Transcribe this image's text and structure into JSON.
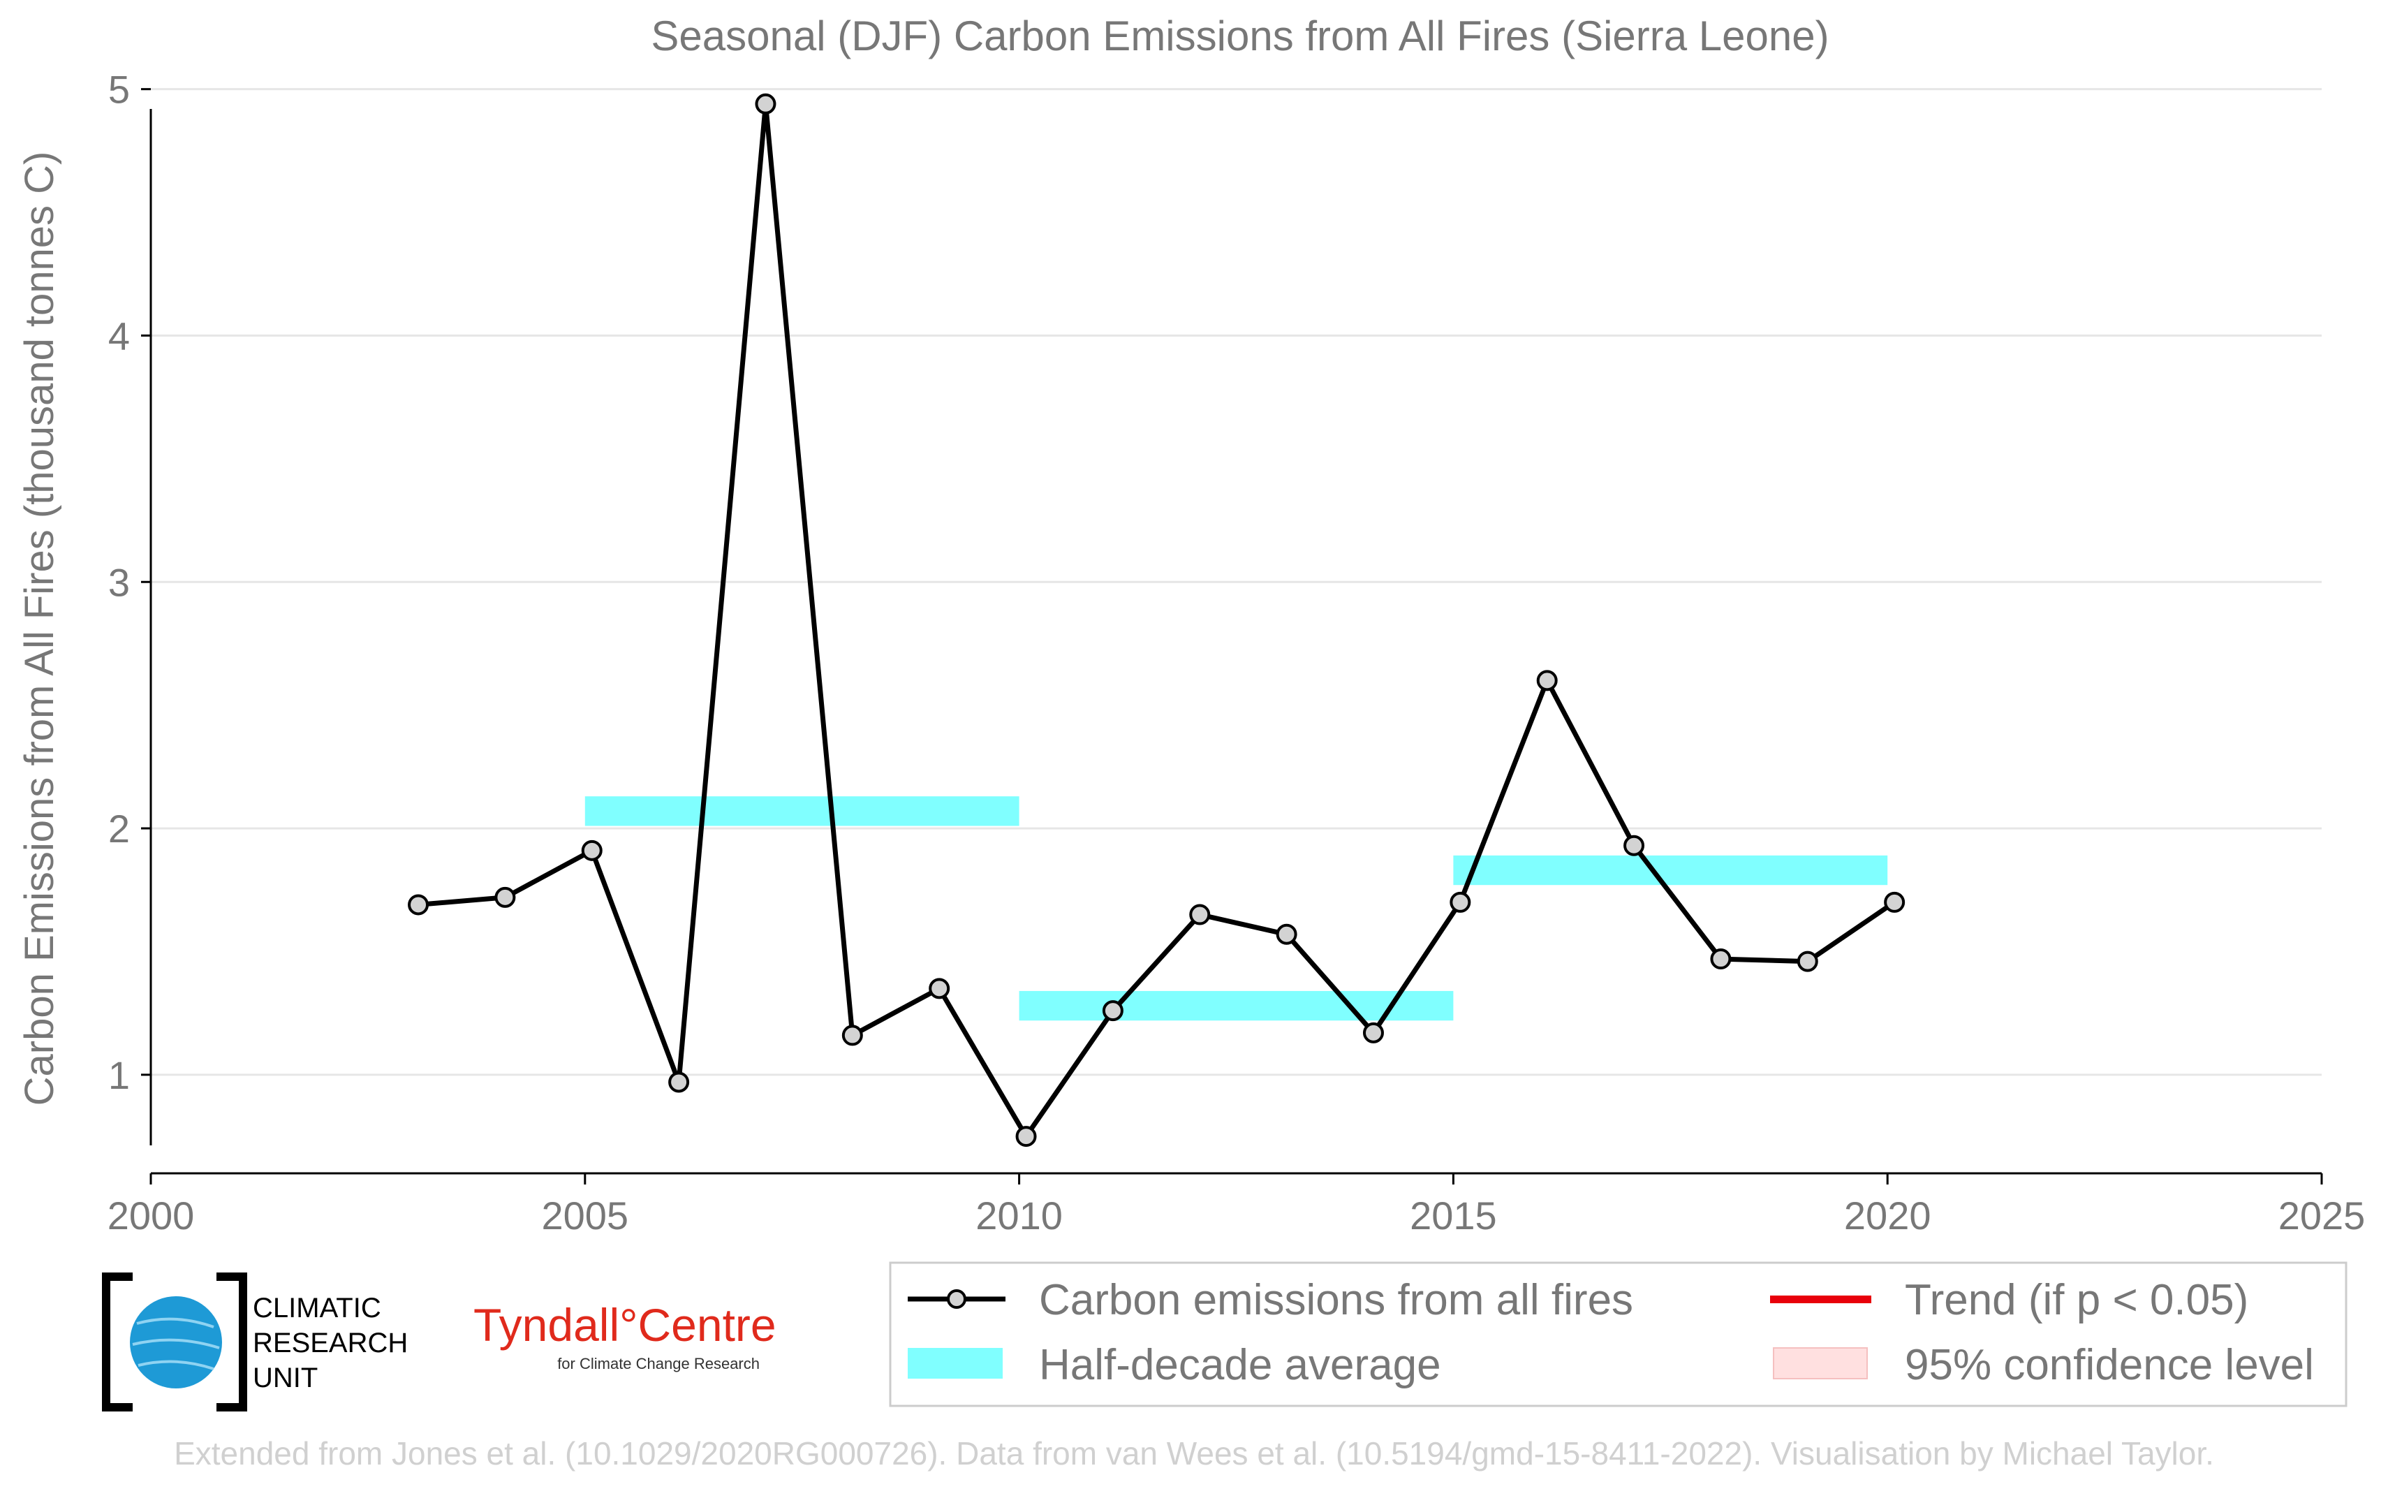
{
  "chart_data": {
    "type": "line",
    "title": "Seasonal (DJF) Carbon Emissions from All Fires (Sierra Leone)",
    "xlabel": "",
    "ylabel": "Carbon Emissions from All Fires (thousand tonnes C)",
    "xlim": [
      2000,
      2025
    ],
    "ylim": [
      0.6,
      5.05
    ],
    "xticks": [
      2000,
      2005,
      2010,
      2015,
      2020,
      2025
    ],
    "yticks": [
      1,
      2,
      3,
      4,
      5
    ],
    "grid": "horizontal",
    "legend_position": "bottom",
    "series": [
      {
        "name": "Carbon emissions from all fires",
        "color": "#000000",
        "marker_fill": "#d3d3d3",
        "x": [
          2003.08,
          2004.08,
          2005.08,
          2006.08,
          2007.08,
          2008.08,
          2009.08,
          2010.08,
          2011.08,
          2012.08,
          2013.08,
          2014.08,
          2015.08,
          2016.08,
          2017.08,
          2018.08,
          2019.08,
          2020.08
        ],
        "y": [
          1.69,
          1.72,
          1.91,
          0.97,
          4.94,
          1.16,
          1.35,
          0.75,
          1.26,
          1.65,
          1.57,
          1.17,
          1.7,
          2.6,
          1.93,
          1.47,
          1.46,
          1.7
        ]
      }
    ],
    "half_decade_averages": {
      "name": "Half-decade average",
      "color": "#80ffff",
      "periods": [
        {
          "start": 2005,
          "end": 2010,
          "value": 2.07
        },
        {
          "start": 2010,
          "end": 2015,
          "value": 1.28
        },
        {
          "start": 2015,
          "end": 2020,
          "value": 1.83
        }
      ]
    },
    "legend": [
      {
        "label": "Carbon emissions from all fires",
        "kind": "line-marker",
        "color": "#000000"
      },
      {
        "label": "Trend (if p < 0.05)",
        "kind": "line",
        "color": "#e8000b"
      },
      {
        "label": "Half-decade average",
        "kind": "band",
        "color": "#80ffff"
      },
      {
        "label": "95% confidence level",
        "kind": "band",
        "color": "#ffe0e0"
      }
    ]
  },
  "logos": {
    "cru": [
      "CLIMATIC",
      "RESEARCH",
      "UNIT"
    ],
    "tyndall_main": "Tyndall°Centre",
    "tyndall_sub": "for Climate Change Research"
  },
  "footer": "Extended from Jones et al. (10.1029/2020RG000726). Data from van Wees et al. (10.5194/gmd-15-8411-2022). Visualisation by Michael Taylor."
}
